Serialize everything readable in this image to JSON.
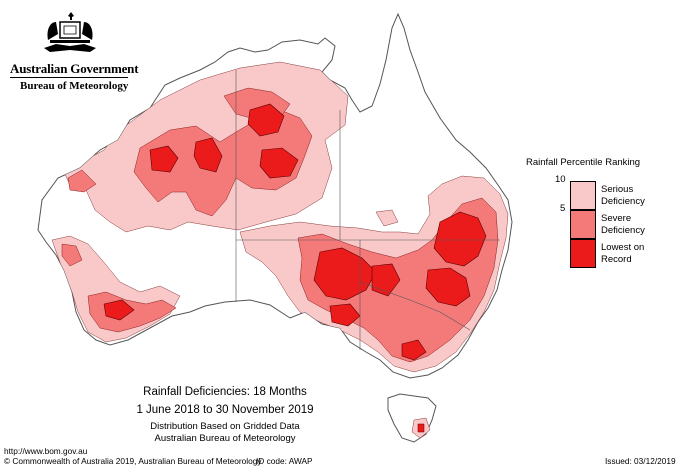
{
  "header": {
    "government": "Australian Government",
    "bureau": "Bureau of Meteorology",
    "crest_icon": "coat-of-arms-crest"
  },
  "legend": {
    "title": "Rainfall Percentile Ranking",
    "ticks": [
      "10",
      "5"
    ],
    "items": [
      {
        "label_line1": "Serious",
        "label_line2": "Deficiency",
        "color": "#f9c9c9"
      },
      {
        "label_line1": "Severe",
        "label_line2": "Deficiency",
        "color": "#f47a7a"
      },
      {
        "label_line1": "Lowest on",
        "label_line2": "Record",
        "color": "#ec1b1b"
      }
    ]
  },
  "map": {
    "title": "Rainfall Deficiencies: 18 Months",
    "period": "1 June 2018 to 30 November 2019",
    "distribution": "Distribution Based on Gridded Data",
    "source": "Australian Bureau of Meteorology",
    "land_color": "#ffffff",
    "outline_color": "#555555"
  },
  "footer": {
    "url": "http://www.bom.gov.au",
    "copyright": "© Commonwealth of Australia 2019, Australian Bureau of Meteorology",
    "id_code": "ID code: AWAP",
    "issued": "Issued: 03/12/2019"
  }
}
